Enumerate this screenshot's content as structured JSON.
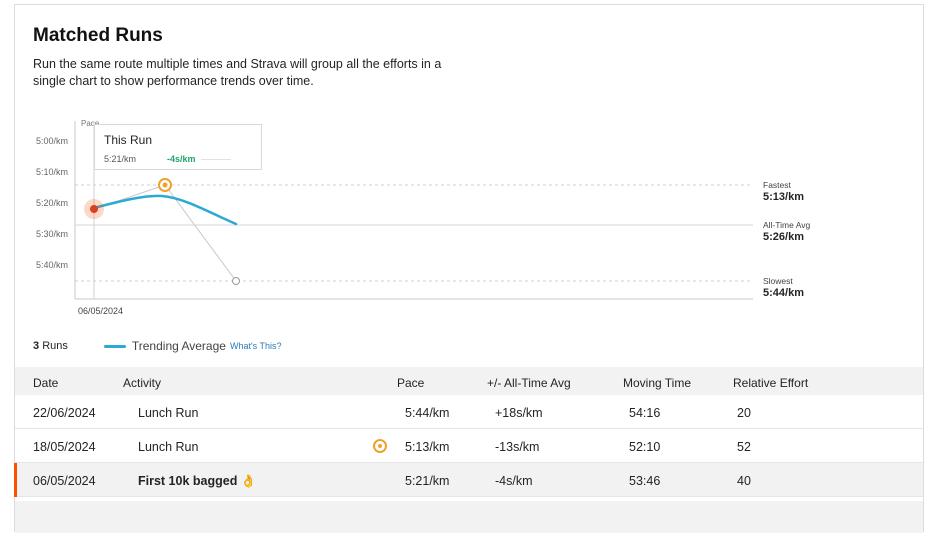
{
  "header": {
    "title": "Matched Runs",
    "description": "Run the same route multiple times and Strava will group all the efforts in a single chart to show performance trends over time."
  },
  "chart": {
    "y_axis_label": "Pace",
    "y_ticks": [
      "5:00/km",
      "5:10/km",
      "5:20/km",
      "5:30/km",
      "5:40/km"
    ],
    "x_tick": "06/05/2024",
    "accent_color": "#fc5200",
    "trend_color": "#2baad3",
    "medal_color": "#f0a12b"
  },
  "chart_data": {
    "type": "line",
    "x": [
      "06/05/2024",
      "18/05/2024",
      "22/06/2024"
    ],
    "series": [
      {
        "name": "Trending Average",
        "values": [
          5.333,
          5.283,
          5.467
        ]
      }
    ],
    "points": [
      {
        "date": "06/05/2024",
        "pace": "5:21/km",
        "pace_min": 5.35
      },
      {
        "date": "18/05/2024",
        "pace": "5:13/km",
        "pace_min": 5.217
      },
      {
        "date": "22/06/2024",
        "pace": "5:44/km",
        "pace_min": 5.733
      }
    ],
    "ylim_min_per_km": [
      5.0,
      5.75
    ],
    "reference_lines": [
      {
        "label": "Fastest",
        "value": "5:13/km",
        "pace_min": 5.217
      },
      {
        "label": "All-Time Avg",
        "value": "5:26/km",
        "pace_min": 5.433
      },
      {
        "label": "Slowest",
        "value": "5:44/km",
        "pace_min": 5.733
      }
    ]
  },
  "tooltip": {
    "title": "This Run",
    "pace": "5:21/km",
    "diff": "-4s/km"
  },
  "legend": {
    "count_num": "3",
    "count_label": "Runs",
    "trend_label": "Trending Average",
    "whats_this": "What's This?"
  },
  "table": {
    "headers": [
      "Date",
      "Activity",
      "Pace",
      "+/- All-Time Avg",
      "Moving Time",
      "Relative Effort"
    ],
    "rows": [
      {
        "date": "22/06/2024",
        "activity": "Lunch Run",
        "pace": "5:44/km",
        "diff": "+18s/km",
        "moving_time": "54:16",
        "relative_effort": "20"
      },
      {
        "date": "18/05/2024",
        "activity": "Lunch Run",
        "pace": "5:13/km",
        "diff": "-13s/km",
        "moving_time": "52:10",
        "relative_effort": "52"
      },
      {
        "date": "06/05/2024",
        "activity": "First 10k bagged 👌",
        "pace": "5:21/km",
        "diff": "-4s/km",
        "moving_time": "53:46",
        "relative_effort": "40"
      }
    ]
  }
}
